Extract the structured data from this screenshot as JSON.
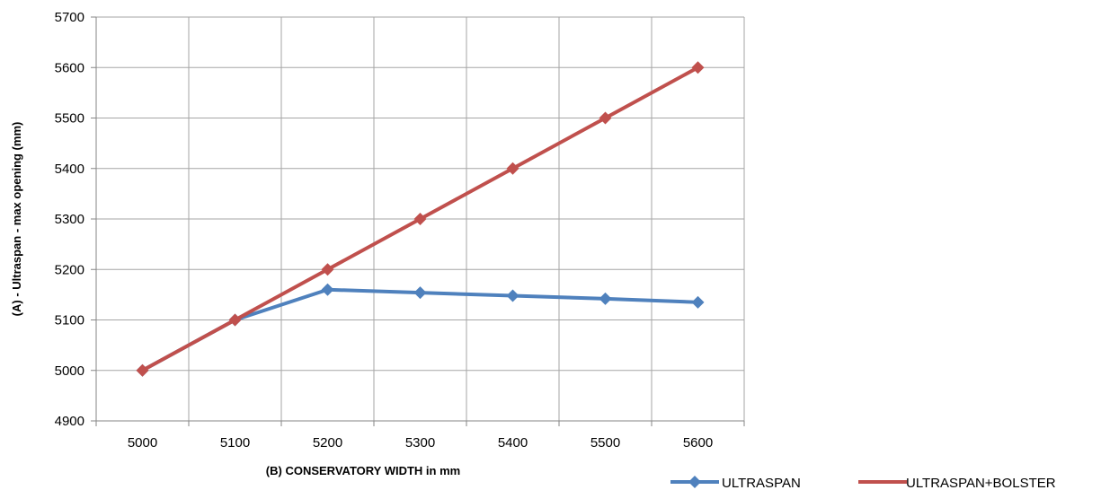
{
  "chart_data": {
    "type": "line",
    "x": [
      "5000",
      "5100",
      "5200",
      "5300",
      "5400",
      "5500",
      "5600"
    ],
    "series": [
      {
        "name": "ULTRASPAN",
        "color": "#4f81bd",
        "values": [
          5000,
          5100,
          5160,
          5154,
          5148,
          5142,
          5135
        ]
      },
      {
        "name": "ULTRASPAN+BOLSTER",
        "color": "#c0504d",
        "values": [
          5000,
          5100,
          5200,
          5300,
          5400,
          5500,
          5600
        ]
      }
    ],
    "xlabel": "(B) CONSERVATORY WIDTH in mm",
    "ylabel": "(A) - Ultraspan  - max opening (mm)",
    "ylim": [
      4900,
      5700
    ],
    "yticks": [
      "4900",
      "5000",
      "5100",
      "5200",
      "5300",
      "5400",
      "5500",
      "5600",
      "5700"
    ],
    "grid": true,
    "legend": "bottom-right"
  }
}
